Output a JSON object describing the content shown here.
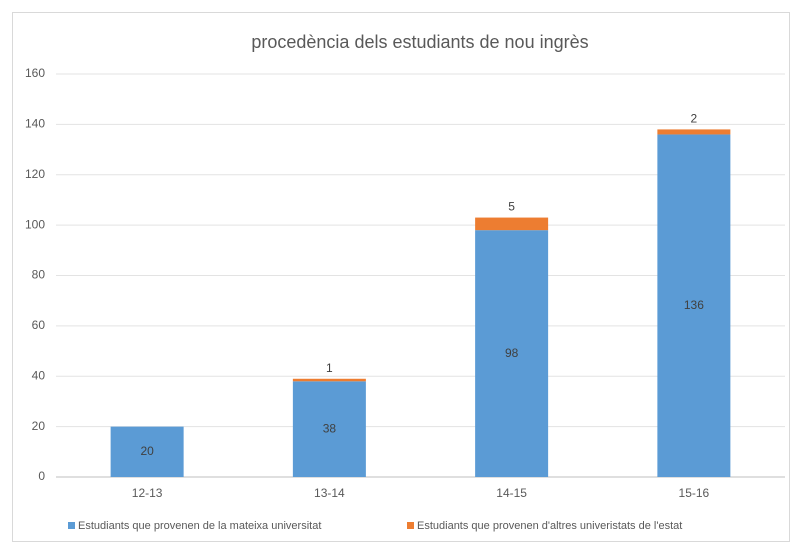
{
  "chart_data": {
    "type": "stacked_bar",
    "title": "procedència dels estudiants de nou ingrès",
    "categories": [
      "12-13",
      "13-14",
      "14-15",
      "15-16"
    ],
    "series": [
      {
        "name": "Estudiants que provenen de la mateixa universitat",
        "color": "#5b9bd5",
        "values": [
          20,
          38,
          98,
          136
        ]
      },
      {
        "name": "Estudiants que provenen d'altres univeristats de l'estat",
        "color": "#ed7d31",
        "values": [
          null,
          1,
          5,
          2
        ]
      }
    ],
    "ylim": [
      0,
      160
    ],
    "yticks": [
      0,
      20,
      40,
      60,
      80,
      100,
      120,
      140,
      160
    ],
    "grid": true,
    "legend": "bottom"
  }
}
